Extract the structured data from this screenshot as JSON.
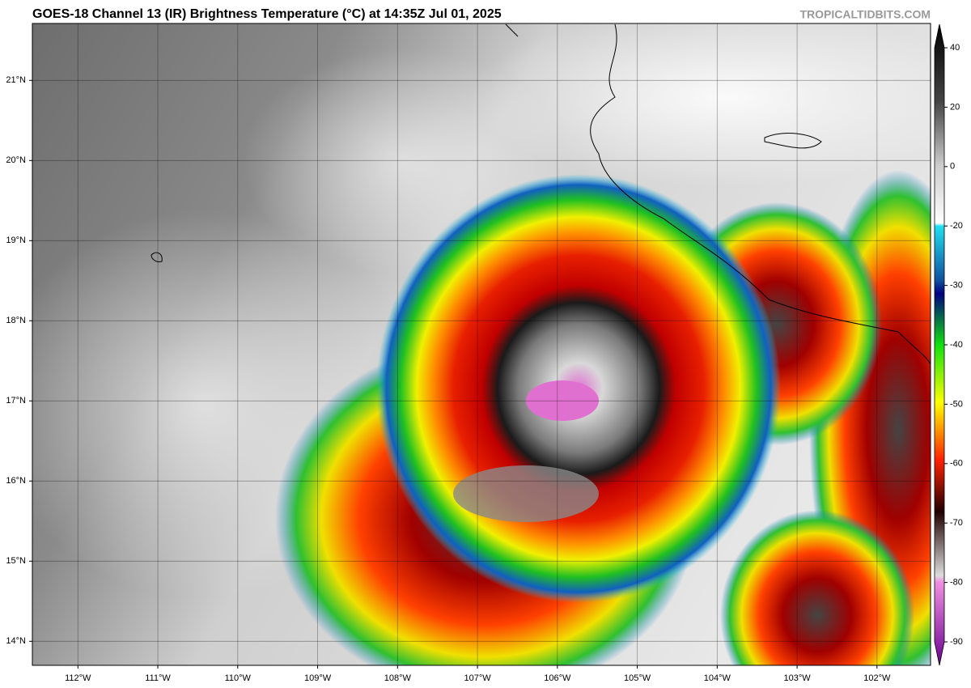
{
  "header": {
    "title": "GOES-18 Channel 13 (IR) Brightness Temperature (°C) at 14:35Z Jul 01, 2025",
    "credit": "TROPICALTIDBITS.COM"
  },
  "map": {
    "xlim": [
      -112.57,
      -101.33
    ],
    "ylim": [
      13.7,
      21.71
    ],
    "xticks": [
      {
        "value": -112,
        "label": "112°W"
      },
      {
        "value": -111,
        "label": "111°W"
      },
      {
        "value": -110,
        "label": "110°W"
      },
      {
        "value": -109,
        "label": "109°W"
      },
      {
        "value": -108,
        "label": "108°W"
      },
      {
        "value": -107,
        "label": "107°W"
      },
      {
        "value": -106,
        "label": "106°W"
      },
      {
        "value": -105,
        "label": "105°W"
      },
      {
        "value": -104,
        "label": "104°W"
      },
      {
        "value": -103,
        "label": "103°W"
      },
      {
        "value": -102,
        "label": "102°W"
      }
    ],
    "yticks": [
      {
        "value": 21,
        "label": "21°N"
      },
      {
        "value": 20,
        "label": "20°N"
      },
      {
        "value": 19,
        "label": "19°N"
      },
      {
        "value": 18,
        "label": "18°N"
      },
      {
        "value": 17,
        "label": "17°N"
      },
      {
        "value": 16,
        "label": "16°N"
      },
      {
        "value": 15,
        "label": "15°N"
      },
      {
        "value": 14,
        "label": "14°N"
      }
    ]
  },
  "colorbar": {
    "ticks": [
      40,
      20,
      0,
      -20,
      -30,
      -40,
      -50,
      -60,
      -70,
      -80,
      -90
    ]
  }
}
